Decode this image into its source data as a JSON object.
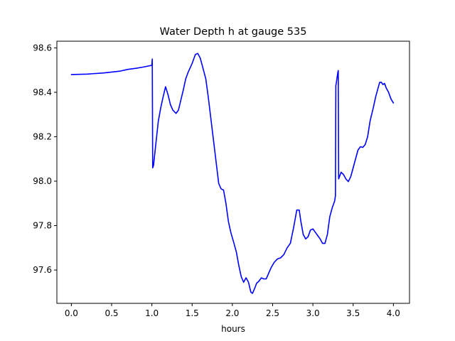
{
  "chart_data": {
    "type": "line",
    "title": "Water Depth h at gauge 535",
    "xlabel": "hours",
    "ylabel": "",
    "xlim": [
      -0.18,
      4.2
    ],
    "ylim": [
      97.45,
      98.63
    ],
    "grid": false,
    "x_ticks": [
      0.0,
      0.5,
      1.0,
      1.5,
      2.0,
      2.5,
      3.0,
      3.5,
      4.0
    ],
    "x_tick_labels": [
      "0.0",
      "0.5",
      "1.0",
      "1.5",
      "2.0",
      "2.5",
      "3.0",
      "3.5",
      "4.0"
    ],
    "y_ticks": [
      97.6,
      97.8,
      98.0,
      98.2,
      98.4,
      98.6
    ],
    "y_tick_labels": [
      "97.6",
      "97.8",
      "98.0",
      "98.2",
      "98.4",
      "98.6"
    ],
    "series": [
      {
        "color": "#0000ff",
        "x": [
          0.0,
          0.2,
          0.4,
          0.6,
          0.7,
          0.8,
          0.9,
          0.98,
          1.0,
          1.005,
          1.01,
          1.02,
          1.05,
          1.08,
          1.11,
          1.14,
          1.17,
          1.2,
          1.23,
          1.26,
          1.3,
          1.33,
          1.36,
          1.39,
          1.42,
          1.45,
          1.5,
          1.54,
          1.57,
          1.6,
          1.63,
          1.67,
          1.7,
          1.73,
          1.76,
          1.8,
          1.83,
          1.86,
          1.89,
          1.92,
          1.95,
          1.98,
          2.02,
          2.05,
          2.08,
          2.11,
          2.14,
          2.17,
          2.2,
          2.23,
          2.25,
          2.28,
          2.3,
          2.33,
          2.36,
          2.39,
          2.42,
          2.45,
          2.48,
          2.52,
          2.56,
          2.6,
          2.64,
          2.68,
          2.72,
          2.76,
          2.8,
          2.83,
          2.85,
          2.88,
          2.91,
          2.94,
          2.97,
          3.0,
          3.03,
          3.06,
          3.09,
          3.12,
          3.15,
          3.18,
          3.21,
          3.24,
          3.27,
          3.28,
          3.285,
          3.29,
          3.31,
          3.315,
          3.32,
          3.35,
          3.38,
          3.41,
          3.44,
          3.47,
          3.5,
          3.53,
          3.56,
          3.59,
          3.62,
          3.65,
          3.68,
          3.71,
          3.75,
          3.78,
          3.81,
          3.83,
          3.85,
          3.87,
          3.89,
          3.91,
          3.94,
          3.97,
          4.0
        ],
        "y": [
          98.48,
          98.482,
          98.487,
          98.495,
          98.503,
          98.508,
          98.514,
          98.52,
          98.522,
          98.55,
          98.06,
          98.07,
          98.17,
          98.27,
          98.33,
          98.38,
          98.425,
          98.39,
          98.345,
          98.32,
          98.305,
          98.32,
          98.365,
          98.41,
          98.46,
          98.49,
          98.53,
          98.57,
          98.575,
          98.555,
          98.515,
          98.46,
          98.38,
          98.29,
          98.2,
          98.08,
          97.99,
          97.965,
          97.96,
          97.9,
          97.82,
          97.77,
          97.72,
          97.68,
          97.62,
          97.57,
          97.545,
          97.565,
          97.545,
          97.5,
          97.495,
          97.52,
          97.54,
          97.55,
          97.565,
          97.56,
          97.56,
          97.585,
          97.61,
          97.635,
          97.65,
          97.655,
          97.67,
          97.7,
          97.72,
          97.79,
          97.87,
          97.87,
          97.82,
          97.76,
          97.74,
          97.75,
          97.78,
          97.785,
          97.77,
          97.755,
          97.74,
          97.72,
          97.72,
          97.76,
          97.84,
          97.88,
          97.91,
          97.935,
          98.43,
          98.44,
          98.49,
          98.498,
          98.01,
          98.04,
          98.03,
          98.01,
          97.998,
          98.02,
          98.06,
          98.1,
          98.14,
          98.155,
          98.152,
          98.165,
          98.2,
          98.27,
          98.33,
          98.38,
          98.42,
          98.445,
          98.445,
          98.435,
          98.44,
          98.42,
          98.4,
          98.37,
          98.352
        ]
      }
    ]
  }
}
